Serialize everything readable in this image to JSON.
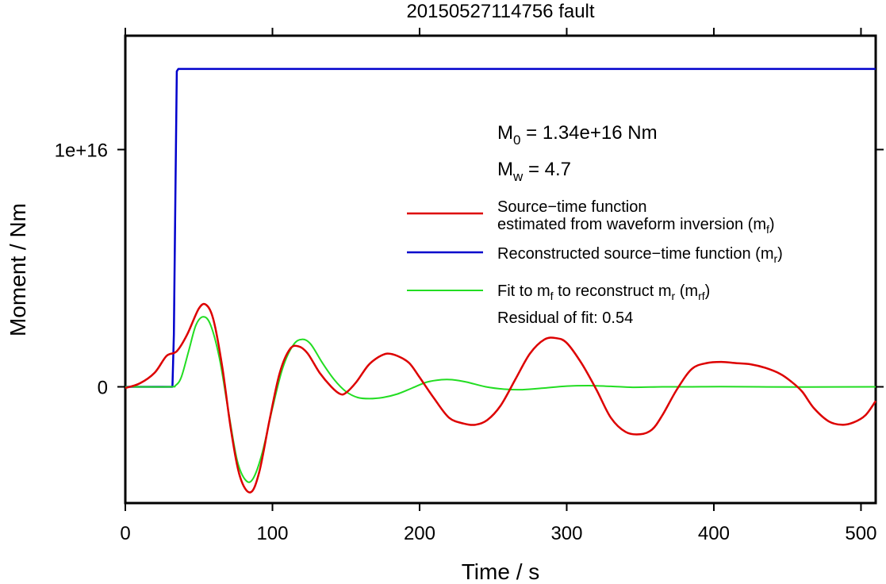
{
  "chart_data": {
    "type": "line",
    "title": "20150527114756 fault",
    "xlabel": "Time / s",
    "ylabel": "Moment / Nm",
    "xlim": [
      0,
      510
    ],
    "ylim": [
      -4900000000000000.0,
      1.48e+16
    ],
    "x_ticks": [
      0,
      100,
      200,
      300,
      400,
      500
    ],
    "x_tick_labels": [
      "0",
      "100",
      "200",
      "300",
      "400",
      "500"
    ],
    "y_ticks": [
      0,
      1e+16
    ],
    "y_tick_labels": [
      "0",
      "1e+16"
    ],
    "grid": false,
    "legend_position": "right",
    "colors": {
      "red": "#dd0000",
      "blue": "#0000cc",
      "green": "#22dd22"
    },
    "annotations": {
      "m0": {
        "base": "M",
        "sub": "0",
        "rest": " = 1.34e+16 Nm"
      },
      "mw": {
        "base": "M",
        "sub": "w",
        "rest": " = 4.7"
      },
      "residual": "Residual of fit: 0.54"
    },
    "legend": [
      {
        "color": "#dd0000",
        "line1": "Source−time function",
        "line2_text": "estimated from waveform inversion (m",
        "line2_sub": "f",
        "line2_end": ")"
      },
      {
        "color": "#0000cc",
        "text": "Reconstructed source−time function (m",
        "sub": "r",
        "end": ")"
      },
      {
        "color": "#22dd22",
        "t1": "Fit to m",
        "s1": "f",
        "t2": " to reconstruct m",
        "s2": "r",
        "t3": " (m",
        "s3": "rf",
        "t4": ")"
      }
    ],
    "series": [
      {
        "name": "Source−time function estimated from waveform inversion (mf)",
        "color": "#dd0000",
        "points": [
          [
            0,
            -50000000000000.0
          ],
          [
            10,
            150000000000000.0
          ],
          [
            20,
            600000000000000.0
          ],
          [
            28,
            1300000000000000.0
          ],
          [
            35,
            1500000000000000.0
          ],
          [
            42,
            2200000000000000.0
          ],
          [
            50,
            3300000000000000.0
          ],
          [
            55,
            3450000000000000.0
          ],
          [
            60,
            2800000000000000.0
          ],
          [
            66,
            800000000000000.0
          ],
          [
            72,
            -1900000000000000.0
          ],
          [
            78,
            -3800000000000000.0
          ],
          [
            85,
            -4450000000000000.0
          ],
          [
            91,
            -3600000000000000.0
          ],
          [
            98,
            -1400000000000000.0
          ],
          [
            105,
            600000000000000.0
          ],
          [
            112,
            1600000000000000.0
          ],
          [
            118,
            1700000000000000.0
          ],
          [
            124,
            1400000000000000.0
          ],
          [
            132,
            600000000000000.0
          ],
          [
            140,
            0.0
          ],
          [
            146,
            -300000000000000.0
          ],
          [
            150,
            -250000000000000.0
          ],
          [
            157,
            200000000000000.0
          ],
          [
            165,
            900000000000000.0
          ],
          [
            172,
            1250000000000000.0
          ],
          [
            178,
            1400000000000000.0
          ],
          [
            185,
            1300000000000000.0
          ],
          [
            193,
            1000000000000000.0
          ],
          [
            200,
            400000000000000.0
          ],
          [
            210,
            -500000000000000.0
          ],
          [
            220,
            -1300000000000000.0
          ],
          [
            230,
            -1550000000000000.0
          ],
          [
            238,
            -1600000000000000.0
          ],
          [
            246,
            -1400000000000000.0
          ],
          [
            255,
            -800000000000000.0
          ],
          [
            265,
            300000000000000.0
          ],
          [
            275,
            1400000000000000.0
          ],
          [
            285,
            2000000000000000.0
          ],
          [
            293,
            2050000000000000.0
          ],
          [
            300,
            1850000000000000.0
          ],
          [
            310,
            1000000000000000.0
          ],
          [
            320,
            -100000000000000.0
          ],
          [
            330,
            -1300000000000000.0
          ],
          [
            340,
            -1900000000000000.0
          ],
          [
            350,
            -2000000000000000.0
          ],
          [
            358,
            -1800000000000000.0
          ],
          [
            365,
            -1200000000000000.0
          ],
          [
            375,
            -100000000000000.0
          ],
          [
            385,
            750000000000000.0
          ],
          [
            395,
            1000000000000000.0
          ],
          [
            405,
            1050000000000000.0
          ],
          [
            415,
            1000000000000000.0
          ],
          [
            425,
            950000000000000.0
          ],
          [
            435,
            800000000000000.0
          ],
          [
            445,
            550000000000000.0
          ],
          [
            452,
            250000000000000.0
          ],
          [
            460,
            -200000000000000.0
          ],
          [
            468,
            -900000000000000.0
          ],
          [
            478,
            -1450000000000000.0
          ],
          [
            487,
            -1600000000000000.0
          ],
          [
            495,
            -1500000000000000.0
          ],
          [
            503,
            -1200000000000000.0
          ],
          [
            510,
            -600000000000000.0
          ]
        ]
      },
      {
        "name": "Reconstructed source−time function (mr)",
        "color": "#0000cc",
        "points": [
          [
            0,
            0
          ],
          [
            32,
            0
          ],
          [
            33,
            2200000000000000.0
          ],
          [
            34,
            8000000000000000.0
          ],
          [
            35,
            1.33e+16
          ],
          [
            36,
            1.34e+16
          ],
          [
            510,
            1.34e+16
          ]
        ]
      },
      {
        "name": "Fit to mf to reconstruct mr (mrf)",
        "color": "#22dd22",
        "points": [
          [
            0,
            0
          ],
          [
            30,
            0
          ],
          [
            34,
            50000000000000.0
          ],
          [
            38,
            400000000000000.0
          ],
          [
            43,
            1500000000000000.0
          ],
          [
            48,
            2600000000000000.0
          ],
          [
            53,
            2950000000000000.0
          ],
          [
            58,
            2600000000000000.0
          ],
          [
            64,
            1200000000000000.0
          ],
          [
            70,
            -1000000000000000.0
          ],
          [
            76,
            -3100000000000000.0
          ],
          [
            82,
            -3950000000000000.0
          ],
          [
            87,
            -3850000000000000.0
          ],
          [
            93,
            -2800000000000000.0
          ],
          [
            100,
            -900000000000000.0
          ],
          [
            107,
            800000000000000.0
          ],
          [
            114,
            1750000000000000.0
          ],
          [
            120,
            2000000000000000.0
          ],
          [
            126,
            1800000000000000.0
          ],
          [
            134,
            1000000000000000.0
          ],
          [
            142,
            300000000000000.0
          ],
          [
            150,
            -200000000000000.0
          ],
          [
            158,
            -450000000000000.0
          ],
          [
            166,
            -500000000000000.0
          ],
          [
            175,
            -450000000000000.0
          ],
          [
            185,
            -300000000000000.0
          ],
          [
            195,
            -50000000000000.0
          ],
          [
            205,
            200000000000000.0
          ],
          [
            215,
            300000000000000.0
          ],
          [
            222,
            300000000000000.0
          ],
          [
            232,
            200000000000000.0
          ],
          [
            245,
            0.0
          ],
          [
            258,
            -100000000000000.0
          ],
          [
            270,
            -120000000000000.0
          ],
          [
            285,
            -50000000000000.0
          ],
          [
            300,
            30000000000000.0
          ],
          [
            315,
            50000000000000.0
          ],
          [
            330,
            20000000000000.0
          ],
          [
            345,
            -20000000000000.0
          ],
          [
            365,
            0.0
          ],
          [
            385,
            0.0
          ],
          [
            405,
            10000000000000.0
          ],
          [
            430,
            0.0
          ],
          [
            460,
            -10000000000000.0
          ],
          [
            510,
            0.0
          ]
        ]
      }
    ]
  }
}
